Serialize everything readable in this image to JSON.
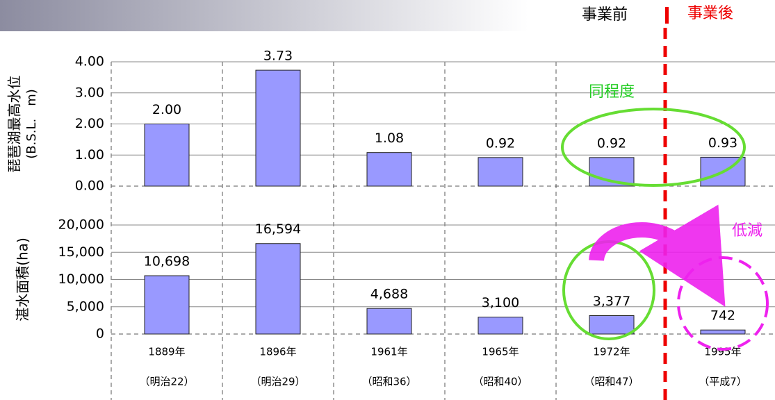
{
  "annotations": {
    "before": "事業前",
    "after": "事業後",
    "same": "同程度",
    "reduced": "低減"
  },
  "chart_data": [
    {
      "type": "bar",
      "ylabel": "琵琶湖最高水位",
      "ylabel_unit": "(B.S.L.　m)",
      "color": "#9999ff",
      "values": [
        2.0,
        3.73,
        1.08,
        0.92,
        0.92,
        0.93
      ],
      "value_labels": [
        "2.00",
        "3.73",
        "1.08",
        "0.92",
        "0.92",
        "0.93"
      ],
      "ylim": [
        0,
        4
      ],
      "yticks": [
        {
          "value": 0,
          "label": "0.00"
        },
        {
          "value": 1,
          "label": "1.00"
        },
        {
          "value": 2,
          "label": "2.00"
        },
        {
          "value": 3,
          "label": "3.00"
        },
        {
          "value": 4,
          "label": "4.00"
        }
      ],
      "grid": true
    },
    {
      "type": "bar",
      "ylabel": "湛水面積(ha)",
      "color": "#9999ff",
      "categories": [
        "1889年",
        "1896年",
        "1961年",
        "1965年",
        "1972年",
        "1995年"
      ],
      "category_sublabels": [
        "（明治22）",
        "（明治29）",
        "（昭和36）",
        "（昭和40）",
        "（昭和47）",
        "（平成7）"
      ],
      "values": [
        10698,
        16594,
        4688,
        3100,
        3377,
        742
      ],
      "value_labels": [
        "10,698",
        "16,594",
        "4,688",
        "3,100",
        "3,377",
        "742"
      ],
      "ylim": [
        0,
        20000
      ],
      "yticks": [
        0,
        {
          "value": 5000,
          "label": "5,000"
        },
        {
          "value": 10000,
          "label": "10,000"
        },
        {
          "value": 15000,
          "label": "15,000"
        },
        {
          "value": 20000,
          "label": "20,000"
        }
      ],
      "grid": true
    }
  ]
}
